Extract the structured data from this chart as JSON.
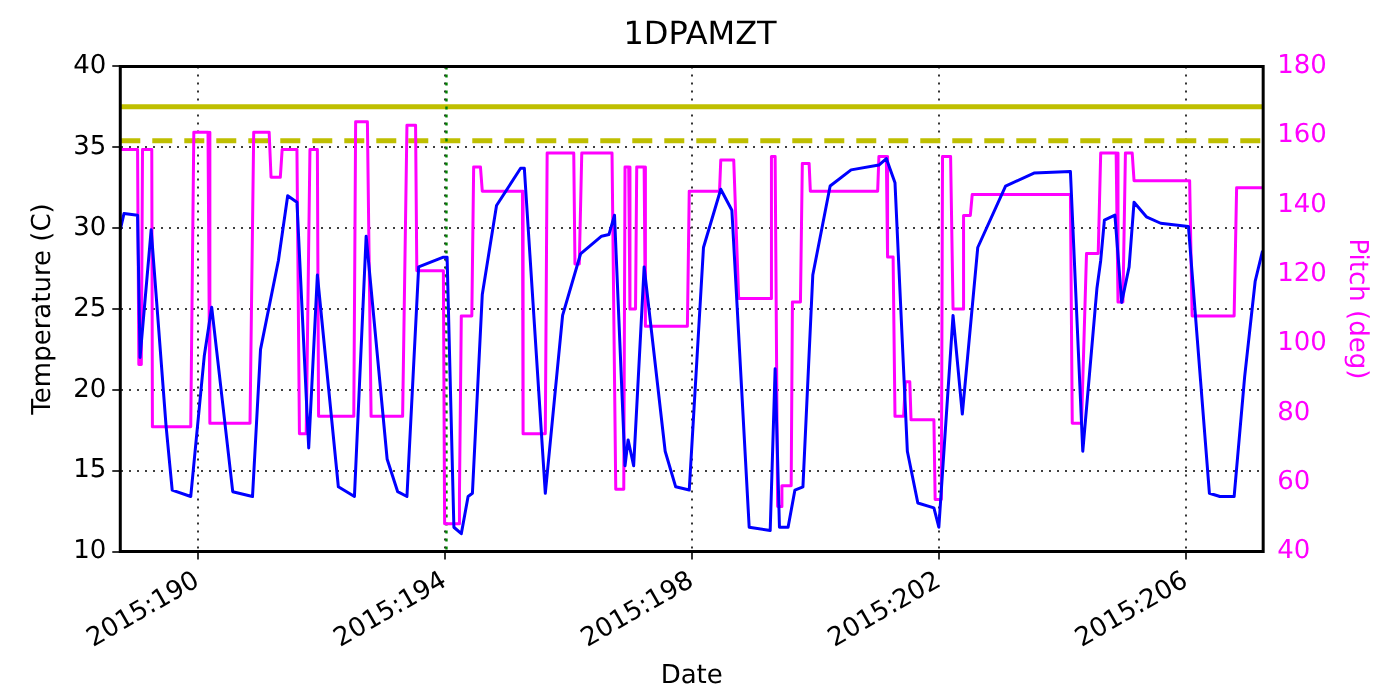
{
  "chart_data": {
    "type": "line",
    "title": "1DPAMZT",
    "xlabel": "Date",
    "ylabel": "Temperature (C)",
    "y2label": "Pitch (deg)",
    "xlim": [
      "2015-07-07T18:00",
      "2015-07-26T06:00"
    ],
    "xticks": [
      {
        "value": "2015-07-09",
        "label": "2015:190"
      },
      {
        "value": "2015-07-13",
        "label": "2015:194"
      },
      {
        "value": "2015-07-17",
        "label": "2015:198"
      },
      {
        "value": "2015-07-21",
        "label": "2015:202"
      },
      {
        "value": "2015-07-25",
        "label": "2015:206"
      }
    ],
    "ylim": [
      10,
      40
    ],
    "yticks": [
      10,
      15,
      20,
      25,
      30,
      35,
      40
    ],
    "y2lim": [
      40,
      180
    ],
    "y2ticks": [
      40,
      60,
      80,
      100,
      120,
      140,
      160,
      180
    ],
    "grid": true,
    "legend": false,
    "marker": "none",
    "line_style": "solid",
    "ref_lines": [
      {
        "axis": "y",
        "value": 37.5,
        "color": "#bfbf00",
        "line_style": "solid"
      },
      {
        "axis": "y",
        "value": 35.4,
        "color": "#bfbf00",
        "line_style": "dashed"
      },
      {
        "axis": "x",
        "value": "2015-07-13T00:43",
        "color": "#008000",
        "line_style": "dotted"
      }
    ],
    "series": [
      {
        "color": "#0000ff",
        "x": [
          "2015-07-07T18:00",
          "2015-07-07T19:26",
          "2015-07-08T00:43",
          "2015-07-08T01:41",
          "2015-07-08T06:00",
          "2015-07-08T11:46",
          "2015-07-08T14:10",
          "2015-07-08T21:22",
          "2015-07-09T02:38",
          "2015-07-09T05:31",
          "2015-07-09T13:41",
          "2015-07-09T21:22",
          "2015-07-10T00:29",
          "2015-07-10T07:26",
          "2015-07-10T11:02",
          "2015-07-10T14:38",
          "2015-07-10T19:12",
          "2015-07-10T22:34",
          "2015-07-11T06:43",
          "2015-07-11T12:58",
          "2015-07-11T17:31",
          "2015-07-12T01:41",
          "2015-07-12T05:46",
          "2015-07-12T09:22",
          "2015-07-12T13:55",
          "2015-07-12T23:31",
          "2015-07-13T00:58",
          "2015-07-13T03:36",
          "2015-07-13T06:29",
          "2015-07-13T09:07",
          "2015-07-13T10:48",
          "2015-07-13T14:38",
          "2015-07-13T20:10",
          "2015-07-14T05:31",
          "2015-07-14T06:58",
          "2015-07-14T15:07",
          "2015-07-14T21:50",
          "2015-07-15T04:48",
          "2015-07-15T12:58",
          "2015-07-15T15:50",
          "2015-07-15T18:00",
          "2015-07-15T22:05",
          "2015-07-15T23:17",
          "2015-07-16T01:26",
          "2015-07-16T05:31",
          "2015-07-16T13:41",
          "2015-07-16T17:46",
          "2015-07-16T23:02",
          "2015-07-17T04:34",
          "2015-07-17T11:17",
          "2015-07-17T15:36",
          "2015-07-17T22:19",
          "2015-07-18T06:29",
          "2015-07-18T08:24",
          "2015-07-18T10:05",
          "2015-07-18T13:26",
          "2015-07-18T16:05",
          "2015-07-18T19:12",
          "2015-07-18T23:02",
          "2015-07-19T05:46",
          "2015-07-19T13:55",
          "2015-07-20T00:43",
          "2015-07-20T03:36",
          "2015-07-20T06:58",
          "2015-07-20T11:46",
          "2015-07-20T15:50",
          "2015-07-20T22:05",
          "2015-07-21T00:00",
          "2015-07-21T05:31",
          "2015-07-21T09:07",
          "2015-07-21T15:07",
          "2015-07-22T01:55",
          "2015-07-22T12:58",
          "2015-07-23T03:07",
          "2015-07-23T07:55",
          "2015-07-23T13:26",
          "2015-07-23T14:53",
          "2015-07-23T16:19",
          "2015-07-23T20:24",
          "2015-07-23T23:02",
          "2015-07-24T01:55",
          "2015-07-24T03:50",
          "2015-07-24T08:38",
          "2015-07-24T14:10",
          "2015-07-25T00:58",
          "2015-07-25T09:07",
          "2015-07-25T13:12",
          "2015-07-25T18:43",
          "2015-07-25T22:48",
          "2015-07-26T02:53",
          "2015-07-26T05:46"
        ],
        "values": [
          29.9,
          30.9,
          30.8,
          22,
          29.9,
          17.8,
          13.8,
          13.4,
          22.1,
          25.1,
          13.7,
          13.4,
          22.5,
          28,
          32,
          31.6,
          16.4,
          27.1,
          14,
          13.4,
          29.5,
          15.7,
          13.7,
          13.4,
          27.6,
          28.2,
          28.2,
          11.5,
          11.1,
          13.4,
          13.6,
          25.9,
          31.4,
          33.7,
          33.7,
          13.6,
          24.6,
          28.4,
          29.5,
          29.6,
          30.8,
          15.3,
          16.9,
          15.3,
          27.6,
          16.2,
          14,
          13.8,
          28.8,
          32.4,
          31.1,
          11.5,
          11.3,
          21.3,
          11.5,
          11.5,
          13.8,
          14,
          27.1,
          32.6,
          33.6,
          33.9,
          34.3,
          32.8,
          16.2,
          13,
          12.7,
          11.5,
          24.6,
          18.5,
          28.8,
          32.6,
          33.4,
          33.5,
          16.2,
          26.3,
          28,
          30.5,
          30.8,
          25.4,
          27.6,
          31.6,
          30.7,
          30.3,
          30.1,
          13.6,
          13.4,
          13.4,
          20.8,
          26.7,
          28.6
        ]
      },
      {
        "color": "#ff00ff",
        "axis": "y2",
        "x": [
          "2015-07-07T18:00",
          "2015-07-08T00:43",
          "2015-07-08T01:12",
          "2015-07-08T02:10",
          "2015-07-08T02:38",
          "2015-07-08T06:14",
          "2015-07-08T06:29",
          "2015-07-08T21:22",
          "2015-07-08T22:34",
          "2015-07-09T04:05",
          "2015-07-09T04:48",
          "2015-07-09T20:24",
          "2015-07-09T21:50",
          "2015-07-10T03:50",
          "2015-07-10T04:34",
          "2015-07-10T08:10",
          "2015-07-10T08:53",
          "2015-07-10T14:38",
          "2015-07-10T15:36",
          "2015-07-10T18:14",
          "2015-07-10T19:41",
          "2015-07-10T22:34",
          "2015-07-10T23:02",
          "2015-07-11T12:43",
          "2015-07-11T13:26",
          "2015-07-11T18:00",
          "2015-07-11T19:26",
          "2015-07-12T07:41",
          "2015-07-12T09:22",
          "2015-07-12T12:43",
          "2015-07-12T13:12",
          "2015-07-12T23:31",
          "2015-07-13T00:00",
          "2015-07-13T05:17",
          "2015-07-13T05:46",
          "2015-07-13T06:29",
          "2015-07-13T10:34",
          "2015-07-13T11:17",
          "2015-07-13T13:55",
          "2015-07-13T14:38",
          "2015-07-14T06:14",
          "2015-07-14T06:29",
          "2015-07-14T15:07",
          "2015-07-14T15:50",
          "2015-07-15T02:10",
          "2015-07-15T02:38",
          "2015-07-15T04:19",
          "2015-07-15T05:17",
          "2015-07-15T17:02",
          "2015-07-15T18:29",
          "2015-07-15T21:36",
          "2015-07-15T22:05",
          "2015-07-15T23:31",
          "2015-07-16T00:00",
          "2015-07-16T02:10",
          "2015-07-16T02:38",
          "2015-07-16T05:31",
          "2015-07-16T06:00",
          "2015-07-16T22:19",
          "2015-07-16T23:02",
          "2015-07-17T10:48",
          "2015-07-17T11:17",
          "2015-07-17T16:19",
          "2015-07-17T18:14",
          "2015-07-18T06:29",
          "2015-07-18T06:58",
          "2015-07-18T08:24",
          "2015-07-18T09:22",
          "2015-07-18T10:34",
          "2015-07-18T11:02",
          "2015-07-18T14:38",
          "2015-07-18T15:07",
          "2015-07-18T18:14",
          "2015-07-18T18:58",
          "2015-07-18T21:36",
          "2015-07-18T22:05",
          "2015-07-20T00:14",
          "2015-07-20T00:43",
          "2015-07-20T03:36",
          "2015-07-20T04:05",
          "2015-07-20T06:14",
          "2015-07-20T06:58",
          "2015-07-20T10:19",
          "2015-07-20T11:02",
          "2015-07-20T12:43",
          "2015-07-20T13:12",
          "2015-07-20T22:05",
          "2015-07-20T22:34",
          "2015-07-21T00:58",
          "2015-07-21T01:26",
          "2015-07-21T04:34",
          "2015-07-21T05:31",
          "2015-07-21T09:07",
          "2015-07-21T09:36",
          "2015-07-21T12:14",
          "2015-07-21T12:58",
          "2015-07-23T03:07",
          "2015-07-23T03:50",
          "2015-07-23T07:26",
          "2015-07-23T09:22",
          "2015-07-23T13:55",
          "2015-07-23T14:53",
          "2015-07-23T20:53",
          "2015-07-23T21:36",
          "2015-07-23T23:31",
          "2015-07-24T00:29",
          "2015-07-24T03:07",
          "2015-07-24T03:50",
          "2015-07-25T01:26",
          "2015-07-25T02:24",
          "2015-07-25T18:43",
          "2015-07-25T19:41",
          "2015-07-26T05:46"
        ],
        "values": [
          156,
          156,
          94,
          94,
          156,
          156,
          76,
          76,
          161,
          161,
          77,
          77,
          161,
          161,
          148,
          148,
          156,
          156,
          74,
          74,
          156,
          156,
          79,
          79,
          164,
          164,
          79,
          79,
          163,
          163,
          121,
          121,
          48,
          48,
          57,
          108,
          108,
          151,
          151,
          144,
          144,
          74,
          74,
          155,
          155,
          123,
          123,
          155,
          155,
          58,
          58,
          151,
          151,
          110,
          110,
          151,
          151,
          105,
          105,
          144,
          144,
          153,
          153,
          113,
          113,
          154,
          154,
          53,
          53,
          59,
          59,
          112,
          112,
          152,
          152,
          144,
          144,
          154,
          154,
          125,
          125,
          79,
          79,
          89,
          89,
          78,
          78,
          55,
          55,
          154,
          154,
          110,
          110,
          137,
          137,
          143,
          143,
          77,
          77,
          126,
          126,
          155,
          155,
          112,
          112,
          155,
          155,
          147,
          147,
          108,
          108,
          145,
          145
        ]
      }
    ]
  }
}
